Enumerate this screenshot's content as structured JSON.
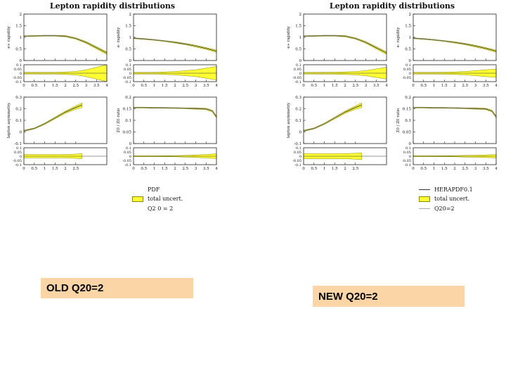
{
  "chart_data": [
    {
      "type": "line",
      "title": "Lepton rapidity distributions",
      "caption": "OLD Q20=2",
      "legend": [
        "PDF",
        "total uncert.",
        "Q2 0 = 2"
      ],
      "panels": [
        {
          "ylabel": "e+ rapidity",
          "x": [
            0,
            0.5,
            1,
            1.5,
            2,
            2.5,
            3,
            3.5,
            4
          ],
          "y": [
            1.05,
            1.06,
            1.07,
            1.07,
            1.05,
            0.95,
            0.78,
            0.55,
            0.32
          ],
          "band": [
            0.02,
            0.02,
            0.02,
            0.02,
            0.03,
            0.03,
            0.04,
            0.05,
            0.06
          ],
          "ylim": [
            0,
            2
          ],
          "yticks": [
            "0",
            "0.5",
            "1",
            "1.5",
            "2"
          ],
          "xticks": [
            "0",
            "0.5",
            "1",
            "1.5",
            "2",
            "2.5",
            "3",
            "3.5",
            "4"
          ],
          "ratio_yticks": [
            "-0.1",
            "-0.05",
            "0",
            "0.05",
            "0.1"
          ],
          "ratio_band": [
            0.01,
            0.01,
            0.01,
            0.01,
            0.015,
            0.02,
            0.04,
            0.07,
            0.1
          ]
        },
        {
          "ylabel": "e- rapidity",
          "x": [
            0,
            0.5,
            1,
            1.5,
            2,
            2.5,
            3,
            3.5,
            4
          ],
          "y": [
            0.96,
            0.93,
            0.89,
            0.84,
            0.78,
            0.71,
            0.62,
            0.52,
            0.4
          ],
          "band": [
            0.02,
            0.02,
            0.02,
            0.02,
            0.03,
            0.03,
            0.04,
            0.04,
            0.05
          ],
          "ylim": [
            0,
            2
          ],
          "yticks": [
            "0",
            "0.5",
            "1",
            "1.5",
            "2"
          ],
          "xticks": [
            "0",
            "0.5",
            "1",
            "1.5",
            "2",
            "2.5",
            "3",
            "3.5",
            "4"
          ],
          "ratio_yticks": [
            "-0.1",
            "-0.05",
            "0",
            "0.05",
            "0.1"
          ],
          "ratio_band": [
            0.01,
            0.01,
            0.01,
            0.015,
            0.02,
            0.03,
            0.04,
            0.06,
            0.08
          ]
        },
        {
          "ylabel": "lepton asymmetry",
          "x": [
            0,
            0.5,
            1,
            1.5,
            2,
            2.5,
            2.8
          ],
          "y": [
            0.01,
            0.03,
            0.07,
            0.12,
            0.17,
            0.21,
            0.23
          ],
          "band": [
            0.005,
            0.005,
            0.006,
            0.008,
            0.01,
            0.015,
            0.02
          ],
          "ylim": [
            -0.1,
            0.3
          ],
          "yticks": [
            "-0.1",
            "0",
            "0.1",
            "0.2",
            "0.3"
          ],
          "xticks": [
            "0",
            "0.5",
            "1",
            "1.5",
            "2",
            "2.5"
          ],
          "ratio_yticks": [
            "-0.1",
            "-0.05",
            "0",
            "0.05",
            "0.1"
          ],
          "ratio_band": [
            0.02,
            0.02,
            0.02,
            0.02,
            0.02,
            0.025,
            0.03
          ]
        },
        {
          "ylabel": "Z0 / Z0 ratio",
          "x": [
            0,
            0.5,
            1,
            1.5,
            2,
            2.5,
            3,
            3.5,
            3.8,
            4
          ],
          "y": [
            0.155,
            0.155,
            0.154,
            0.154,
            0.153,
            0.152,
            0.151,
            0.149,
            0.14,
            0.115
          ],
          "band": [
            0.002,
            0.002,
            0.002,
            0.002,
            0.002,
            0.002,
            0.003,
            0.003,
            0.004,
            0.005
          ],
          "ylim": [
            0,
            0.2
          ],
          "yticks": [
            "0",
            "0.05",
            "0.1",
            "0.15",
            "0.2"
          ],
          "xticks": [
            "0",
            "0.5",
            "1",
            "1.5",
            "2",
            "2.5",
            "3",
            "3.5",
            "4"
          ],
          "ratio_yticks": [
            "-0.1",
            "-0.05",
            "0",
            "0.05",
            "0.1"
          ],
          "ratio_band": [
            0.005,
            0.005,
            0.005,
            0.006,
            0.007,
            0.01,
            0.015,
            0.02,
            0.025,
            0.03
          ]
        }
      ]
    },
    {
      "type": "line",
      "title": "Lepton rapidity distributions",
      "caption": "NEW Q20=2",
      "legend": [
        "HERAPDF0.1",
        "total uncert.",
        "Q20=2"
      ],
      "panels": [
        {
          "ylabel": "e+ rapidity",
          "x": [
            0,
            0.5,
            1,
            1.5,
            2,
            2.5,
            3,
            3.5,
            4
          ],
          "y": [
            1.05,
            1.06,
            1.07,
            1.07,
            1.05,
            0.95,
            0.78,
            0.55,
            0.32
          ],
          "band": [
            0.02,
            0.02,
            0.02,
            0.02,
            0.03,
            0.03,
            0.04,
            0.05,
            0.06
          ],
          "ylim": [
            0,
            2
          ],
          "yticks": [
            "0",
            "0.5",
            "1",
            "1.5",
            "2"
          ],
          "xticks": [
            "0",
            "0.5",
            "1",
            "1.5",
            "2",
            "2.5",
            "3",
            "3.5",
            "4"
          ],
          "ratio_yticks": [
            "-0.1",
            "-0.05",
            "0",
            "0.05",
            "0.1"
          ],
          "ratio_band": [
            0.01,
            0.01,
            0.01,
            0.012,
            0.015,
            0.02,
            0.03,
            0.05,
            0.07
          ]
        },
        {
          "ylabel": "e- rapidity",
          "x": [
            0,
            0.5,
            1,
            1.5,
            2,
            2.5,
            3,
            3.5,
            4
          ],
          "y": [
            0.96,
            0.93,
            0.89,
            0.84,
            0.78,
            0.71,
            0.62,
            0.52,
            0.4
          ],
          "band": [
            0.02,
            0.02,
            0.02,
            0.02,
            0.03,
            0.03,
            0.04,
            0.04,
            0.05
          ],
          "ylim": [
            0,
            2
          ],
          "yticks": [
            "0",
            "0.5",
            "1",
            "1.5",
            "2"
          ],
          "xticks": [
            "0",
            "0.5",
            "1",
            "1.5",
            "2",
            "2.5",
            "3",
            "3.5",
            "4"
          ],
          "ratio_yticks": [
            "-0.05",
            "0",
            "0.05",
            "0.1"
          ],
          "ratio_band": [
            0.01,
            0.01,
            0.01,
            0.012,
            0.015,
            0.02,
            0.03,
            0.04,
            0.05
          ]
        },
        {
          "ylabel": "lepton asymmetry",
          "x": [
            0,
            0.5,
            1,
            1.5,
            2,
            2.5,
            2.8
          ],
          "y": [
            0.01,
            0.03,
            0.07,
            0.12,
            0.17,
            0.21,
            0.23
          ],
          "band": [
            0.005,
            0.005,
            0.006,
            0.008,
            0.01,
            0.015,
            0.02
          ],
          "ylim": [
            -0.1,
            0.3
          ],
          "yticks": [
            "-0.1",
            "0",
            "0.1",
            "0.2",
            "0.3"
          ],
          "xticks": [
            "0",
            "0.5",
            "1",
            "1.5",
            "2",
            "2.5"
          ],
          "ratio_yticks": [
            "-0.1",
            "-0.05",
            "0",
            "0.05",
            "0.1"
          ],
          "ratio_band": [
            0.03,
            0.03,
            0.03,
            0.03,
            0.03,
            0.035,
            0.04
          ]
        },
        {
          "ylabel": "Z0 / Z0 ratio",
          "x": [
            0,
            0.5,
            1,
            1.5,
            2,
            2.5,
            3,
            3.5,
            3.8,
            4
          ],
          "y": [
            0.155,
            0.155,
            0.154,
            0.154,
            0.153,
            0.152,
            0.151,
            0.149,
            0.14,
            0.115
          ],
          "band": [
            0.002,
            0.002,
            0.002,
            0.002,
            0.002,
            0.002,
            0.003,
            0.003,
            0.004,
            0.005
          ],
          "ylim": [
            0,
            0.2
          ],
          "yticks": [
            "0",
            "0.05",
            "0.1",
            "0.15",
            "0.2"
          ],
          "xticks": [
            "0",
            "0.5",
            "1",
            "1.5",
            "2",
            "2.5",
            "3",
            "3.5",
            "4"
          ],
          "ratio_yticks": [
            "-0.1",
            "-0.05",
            "0",
            "0.05",
            "0.1"
          ],
          "ratio_band": [
            0.005,
            0.005,
            0.005,
            0.006,
            0.007,
            0.01,
            0.012,
            0.015,
            0.018,
            0.02
          ]
        }
      ]
    }
  ],
  "colors": {
    "band": "#ffff33",
    "band_edge": "#8a8a00",
    "line": "#333333",
    "line_light": "#999999",
    "caption_bg": "#fcd5a6"
  }
}
